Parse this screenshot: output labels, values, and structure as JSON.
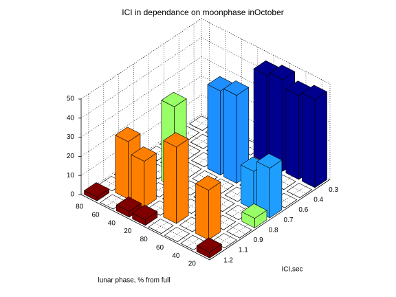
{
  "chart_data": {
    "type": "bar3",
    "title": "ICI in dependance on moonphase inOctober",
    "xlabel": "lunar phase, % from full",
    "ylabel": "ICI,sec",
    "categories": [
      "80",
      "60",
      "40",
      "20",
      "80",
      "60",
      "40",
      "20"
    ],
    "y_categories": [
      "0.3",
      "0.4",
      "0.6",
      "0.7",
      "0.8",
      "0.9",
      "1.1",
      "1.2"
    ],
    "series": [
      {
        "color": "#00008f",
        "values": [
          0,
          0,
          0,
          0,
          46,
          48,
          44,
          46
        ]
      },
      {
        "color": "#0000c8",
        "values": [
          0,
          0,
          0,
          0,
          0,
          0,
          0,
          0
        ]
      },
      {
        "color": "#1e8fff",
        "values": [
          0,
          0,
          0,
          44,
          46,
          0,
          0,
          0
        ]
      },
      {
        "color": "#1e9fff",
        "values": [
          0,
          0,
          0,
          0,
          0,
          0,
          20,
          26
        ]
      },
      {
        "color": "#99ff66",
        "values": [
          0,
          0,
          42,
          0,
          0,
          0,
          0,
          5
        ]
      },
      {
        "color": "#ffd700",
        "values": [
          0,
          0,
          0,
          0,
          0,
          0,
          0,
          0
        ]
      },
      {
        "color": "#ff8000",
        "values": [
          0,
          30,
          24,
          0,
          40,
          0,
          26,
          0
        ]
      },
      {
        "color": "#800000",
        "values": [
          2,
          0,
          3,
          3,
          0,
          0,
          0,
          3
        ]
      }
    ],
    "zlim": [
      0,
      50
    ],
    "zticks": [
      0,
      10,
      20,
      30,
      40,
      50
    ],
    "grid": true
  }
}
